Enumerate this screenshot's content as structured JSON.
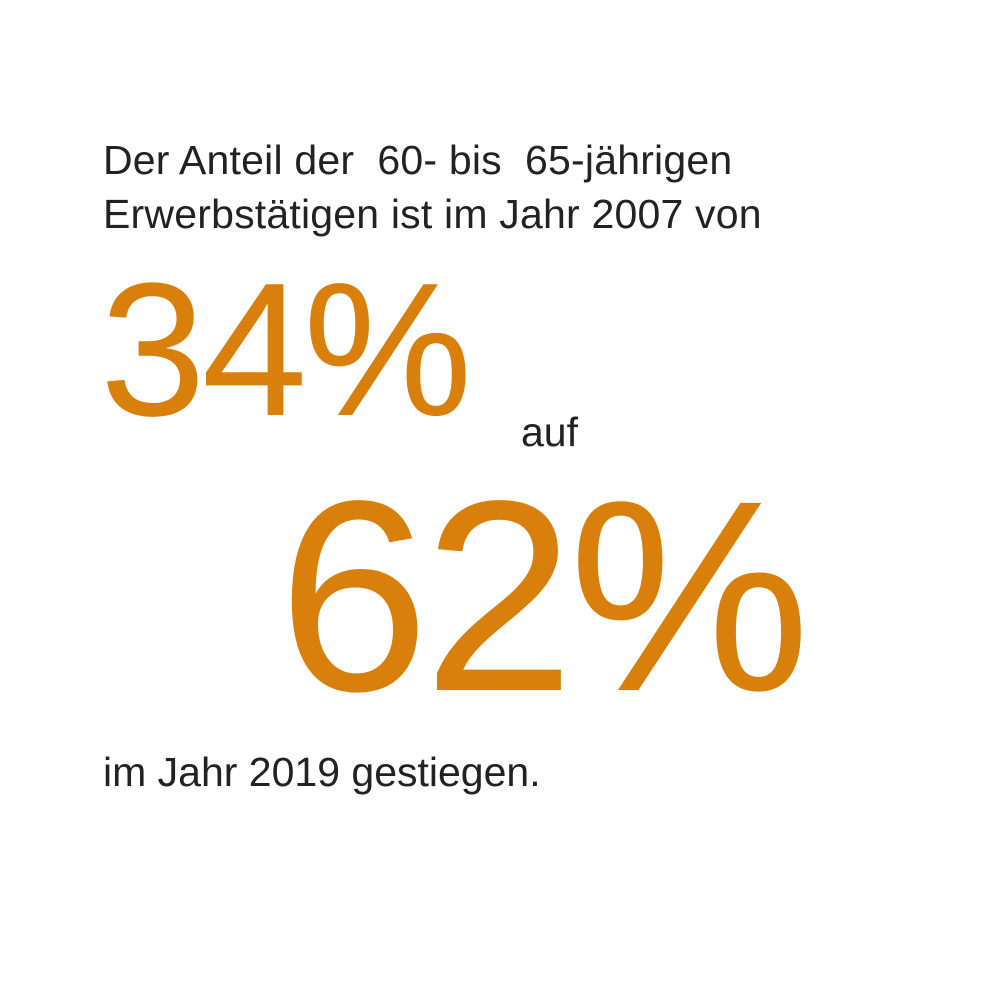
{
  "intro": {
    "line1": "Der Anteil der  60- bis  65-jährigen",
    "line2": "Erwerbstätigen ist im Jahr 2007 von"
  },
  "stat_from": "34%",
  "connector": "auf",
  "stat_to": "62%",
  "outro": "im Jahr 2019 gestiegen.",
  "colors": {
    "accent": "#d9800c",
    "text": "#222222",
    "background": "#ffffff"
  }
}
